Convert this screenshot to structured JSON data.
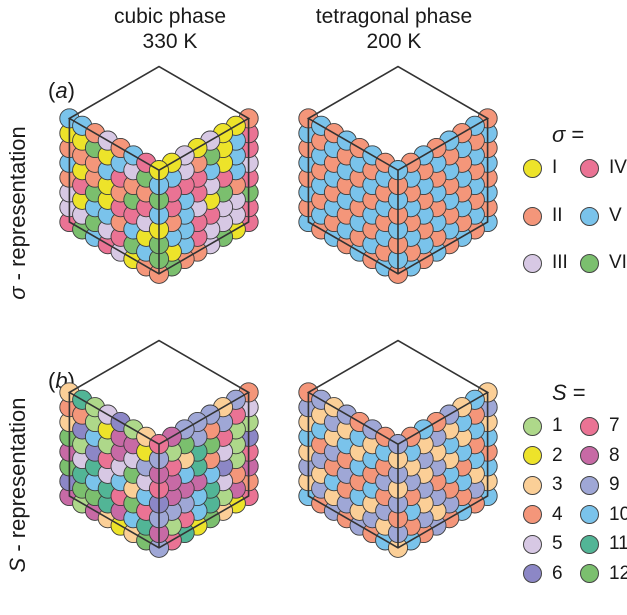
{
  "columns": [
    {
      "title": "cubic phase",
      "subtitle": "330 K"
    },
    {
      "title": "tetragonal phase",
      "subtitle": "200 K"
    }
  ],
  "rows": [
    {
      "tag_open": "(",
      "tag_letter": "a",
      "tag_close": ")",
      "symbol": "σ",
      "label_suffix": " - representation"
    },
    {
      "tag_open": "(",
      "tag_letter": "b",
      "tag_close": ")",
      "symbol": "S",
      "label_suffix": " - representation"
    }
  ],
  "legend_sigma": {
    "symbol": "σ",
    "equals": " =",
    "items": [
      {
        "label": "I",
        "color": "#ede32a"
      },
      {
        "label": "II",
        "color": "#f4967a"
      },
      {
        "label": "III",
        "color": "#d7c8e4"
      },
      {
        "label": "IV",
        "color": "#ea7394"
      },
      {
        "label": "V",
        "color": "#7ac3eb"
      },
      {
        "label": "VI",
        "color": "#7bbf6e"
      }
    ]
  },
  "legend_s": {
    "symbol": "S",
    "equals": " =",
    "items": [
      {
        "label": "1",
        "color": "#aed88a"
      },
      {
        "label": "2",
        "color": "#ede32a"
      },
      {
        "label": "3",
        "color": "#fbcf97"
      },
      {
        "label": "4",
        "color": "#f4967a"
      },
      {
        "label": "5",
        "color": "#d7c8e4"
      },
      {
        "label": "6",
        "color": "#8c87c6"
      },
      {
        "label": "7",
        "color": "#ea7394"
      },
      {
        "label": "8",
        "color": "#c76aa5"
      },
      {
        "label": "9",
        "color": "#9fa7d6"
      },
      {
        "label": "10",
        "color": "#7ac3eb"
      },
      {
        "label": "11",
        "color": "#52b596"
      },
      {
        "label": "12",
        "color": "#7bbf6e"
      }
    ]
  },
  "style": {
    "outline_color": "#333333",
    "sphere_stroke": "#3c3c3c"
  }
}
